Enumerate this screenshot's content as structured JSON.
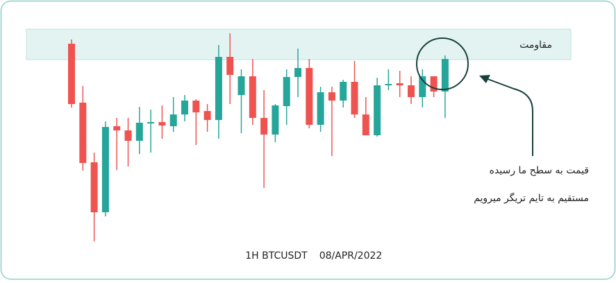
{
  "chart_data": {
    "type": "candlestick",
    "up_color": "#26a69a",
    "down_color": "#ef5350",
    "ylim": [
      0,
      400
    ],
    "resistance_label": "مقاومت",
    "annotation": [
      "قیمت به سطح ما رسیده",
      "مستقیم به تایم تریگر میرویم"
    ],
    "footer": [
      "1H BTCUSDT",
      "08/APR/2022"
    ],
    "open": [
      337,
      252,
      166,
      94,
      218,
      212,
      197,
      223,
      224,
      218,
      235,
      255,
      240,
      227,
      318,
      263,
      290,
      230,
      206,
      247,
      289,
      302,
      220,
      267,
      255,
      282,
      235,
      205,
      277,
      280,
      277,
      260,
      290,
      268
    ],
    "high": [
      343,
      276,
      180,
      225,
      230,
      230,
      246,
      242,
      248,
      260,
      263,
      257,
      250,
      335,
      352,
      300,
      315,
      270,
      250,
      300,
      330,
      315,
      275,
      275,
      285,
      312,
      260,
      288,
      300,
      298,
      290,
      300,
      290,
      320
    ],
    "low": [
      245,
      154,
      52,
      88,
      155,
      160,
      178,
      180,
      200,
      210,
      225,
      191,
      210,
      200,
      250,
      208,
      220,
      129,
      195,
      220,
      260,
      215,
      210,
      175,
      245,
      230,
      205,
      203,
      270,
      260,
      250,
      245,
      260,
      230
    ],
    "close": [
      250,
      165,
      94,
      217,
      212,
      197,
      223,
      224,
      219,
      235,
      255,
      238,
      227,
      318,
      292,
      290,
      230,
      206,
      248,
      289,
      302,
      220,
      267,
      255,
      282,
      235,
      205,
      277,
      279,
      277,
      260,
      290,
      268,
      315
    ]
  }
}
